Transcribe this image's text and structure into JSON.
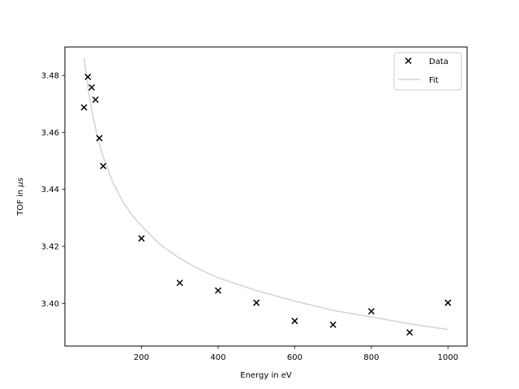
{
  "chart_data": {
    "type": "scatter",
    "title": "",
    "xlabel": "Energy in eV",
    "ylabel": "TOF in μs",
    "ylabel_prefix": "TOF in ",
    "ylabel_unit": "μs",
    "xlim": [
      0,
      1050
    ],
    "ylim": [
      3.385,
      3.49
    ],
    "xticks": [
      200,
      400,
      600,
      800,
      1000
    ],
    "yticks": [
      3.4,
      3.42,
      3.44,
      3.46,
      3.48
    ],
    "grid": false,
    "legend_position": "top-right",
    "series": [
      {
        "name": "Data",
        "kind": "scatter",
        "marker": "x",
        "color": "#000000",
        "x": [
          50,
          60,
          70,
          80,
          90,
          100,
          200,
          300,
          400,
          500,
          600,
          700,
          800,
          900,
          1000
        ],
        "y": [
          3.4688,
          3.4795,
          3.4758,
          3.4715,
          3.458,
          3.4482,
          3.4228,
          3.4072,
          3.4045,
          3.4002,
          3.3938,
          3.3925,
          3.3972,
          3.3898,
          3.4002
        ]
      },
      {
        "name": "Fit",
        "kind": "line",
        "color": "#d3d3d3",
        "x": [
          50,
          60,
          70,
          80,
          90,
          100,
          125,
          150,
          175,
          200,
          250,
          300,
          350,
          400,
          500,
          600,
          700,
          800,
          900,
          1000
        ],
        "y": [
          3.4862,
          3.476,
          3.468,
          3.4615,
          3.456,
          3.4515,
          3.4425,
          3.436,
          3.431,
          3.4272,
          3.4205,
          3.4158,
          3.412,
          3.409,
          3.4045,
          3.4008,
          3.3975,
          3.3952,
          3.3928,
          3.3908
        ]
      }
    ]
  }
}
